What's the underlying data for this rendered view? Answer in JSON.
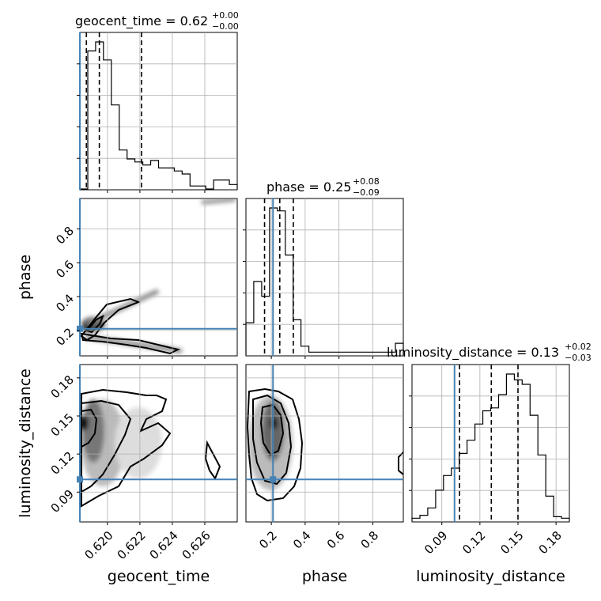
{
  "chart_data": {
    "type": "corner",
    "grid": true,
    "truth_color": "#4682b4",
    "parameters": [
      {
        "name": "geocent_time",
        "label": "geocent_time",
        "truth": 0.6183,
        "range": [
          0.6183,
          0.628
        ],
        "ticks": [
          0.62,
          0.622,
          0.624,
          0.626
        ],
        "tick_labels": [
          "0.620",
          "0.622",
          "0.624",
          "0.626"
        ],
        "title_base": "geocent_time = 0.62",
        "title_sup": "+0.00",
        "title_sub": "−0.00",
        "quantiles": [
          0.6187,
          0.6195,
          0.6221
        ],
        "hist": [
          0.0,
          0.92,
          0.98,
          0.86,
          0.56,
          0.26,
          0.2,
          0.18,
          0.16,
          0.19,
          0.14,
          0.14,
          0.12,
          0.1,
          0.02,
          0.02,
          0.0,
          0.06,
          0.06,
          0.03
        ]
      },
      {
        "name": "phase",
        "label": "phase",
        "truth": 0.21,
        "range": [
          0.05,
          0.98
        ],
        "ticks": [
          0.2,
          0.4,
          0.6,
          0.8
        ],
        "tick_labels": [
          "0.2",
          "0.4",
          "0.6",
          "0.8"
        ],
        "title_base": "phase = 0.25",
        "title_sup": "+0.08",
        "title_sub": "−0.09",
        "quantiles": [
          0.16,
          0.25,
          0.33
        ],
        "hist": [
          0.22,
          0.5,
          0.4,
          1.0,
          0.98,
          0.68,
          0.24,
          0.06,
          0.02,
          0.02,
          0.02,
          0.02,
          0.02,
          0.02,
          0.02,
          0.02,
          0.02,
          0.02,
          0.02,
          0.08
        ]
      },
      {
        "name": "luminosity_distance",
        "label": "luminosity_distance",
        "truth": 0.1,
        "range": [
          0.0665,
          0.1905
        ],
        "ticks": [
          0.09,
          0.12,
          0.15,
          0.18
        ],
        "tick_labels": [
          "0.09",
          "0.12",
          "0.15",
          "0.18"
        ],
        "title_base": "luminosity_distance = 0.13",
        "title_sup": "+0.02",
        "title_sub": "−0.03",
        "quantiles": [
          0.104,
          0.129,
          0.15
        ],
        "hist": [
          0.02,
          0.04,
          0.09,
          0.21,
          0.31,
          0.36,
          0.46,
          0.55,
          0.66,
          0.75,
          0.77,
          0.86,
          1.0,
          0.96,
          0.93,
          0.72,
          0.45,
          0.17,
          0.03,
          0.02
        ]
      }
    ]
  }
}
